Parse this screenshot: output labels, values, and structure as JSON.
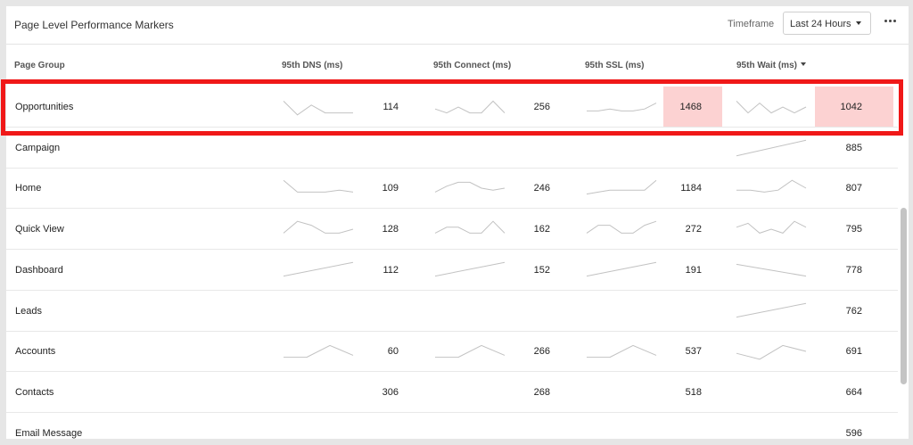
{
  "panel": {
    "title": "Page Level Performance Markers",
    "timeframe_label": "Timeframe",
    "timeframe_value": "Last 24 Hours",
    "more_icon": "more-horizontal-icon"
  },
  "columns": {
    "page_group": "Page Group",
    "dns": "95th DNS (ms)",
    "connect": "95th Connect (ms)",
    "ssl": "95th SSL (ms)",
    "wait": "95th Wait (ms)",
    "wait_sorted": "descending"
  },
  "colors": {
    "highlight_cell": "#fcd2d2",
    "annotation_box": "#f01818",
    "sparkline": "#c2c2c2"
  },
  "rows": [
    {
      "name": "Opportunities",
      "dns": "114",
      "connect": "256",
      "ssl": "1468",
      "wait": "1042",
      "ssl_highlight": true,
      "wait_highlight": true,
      "dns_trend": [
        0.2,
        0.9,
        0.4,
        0.8,
        0.8,
        0.8
      ],
      "connect_trend": [
        0.6,
        0.8,
        0.5,
        0.8,
        0.8,
        0.2,
        0.8
      ],
      "ssl_trend": [
        0.7,
        0.7,
        0.6,
        0.7,
        0.7,
        0.6,
        0.3
      ],
      "wait_trend": [
        0.2,
        0.8,
        0.3,
        0.8,
        0.5,
        0.8,
        0.5
      ]
    },
    {
      "name": "Campaign",
      "dns": "",
      "connect": "",
      "ssl": "",
      "wait": "885",
      "dns_trend": [],
      "connect_trend": [],
      "ssl_trend": [],
      "wait_trend": [
        0.9,
        0.1
      ]
    },
    {
      "name": "Home",
      "dns": "109",
      "connect": "246",
      "ssl": "1184",
      "wait": "807",
      "dns_trend": [
        0.1,
        0.7,
        0.7,
        0.7,
        0.6,
        0.7
      ],
      "connect_trend": [
        0.7,
        0.4,
        0.2,
        0.2,
        0.5,
        0.6,
        0.5
      ],
      "ssl_trend": [
        0.8,
        0.7,
        0.6,
        0.6,
        0.6,
        0.6,
        0.1
      ],
      "wait_trend": [
        0.6,
        0.6,
        0.7,
        0.6,
        0.1,
        0.5
      ]
    },
    {
      "name": "Quick View",
      "dns": "128",
      "connect": "162",
      "ssl": "272",
      "wait": "795",
      "dns_trend": [
        0.7,
        0.1,
        0.3,
        0.7,
        0.7,
        0.5
      ],
      "connect_trend": [
        0.7,
        0.4,
        0.4,
        0.7,
        0.7,
        0.1,
        0.7
      ],
      "ssl_trend": [
        0.7,
        0.3,
        0.3,
        0.7,
        0.7,
        0.3,
        0.1
      ],
      "wait_trend": [
        0.4,
        0.2,
        0.7,
        0.5,
        0.7,
        0.1,
        0.4
      ]
    },
    {
      "name": "Dashboard",
      "dns": "112",
      "connect": "152",
      "ssl": "191",
      "wait": "778",
      "dns_trend": [
        0.8,
        0.1
      ],
      "connect_trend": [
        0.8,
        0.1
      ],
      "ssl_trend": [
        0.8,
        0.1
      ],
      "wait_trend": [
        0.2,
        0.8
      ]
    },
    {
      "name": "Leads",
      "dns": "",
      "connect": "",
      "ssl": "",
      "wait": "762",
      "dns_trend": [],
      "connect_trend": [],
      "ssl_trend": [],
      "wait_trend": [
        0.8,
        0.1
      ]
    },
    {
      "name": "Accounts",
      "dns": "60",
      "connect": "266",
      "ssl": "537",
      "wait": "691",
      "dns_trend": [
        0.8,
        0.8,
        0.2,
        0.7
      ],
      "connect_trend": [
        0.8,
        0.8,
        0.2,
        0.7
      ],
      "ssl_trend": [
        0.8,
        0.8,
        0.2,
        0.7
      ],
      "wait_trend": [
        0.6,
        0.9,
        0.2,
        0.5
      ]
    },
    {
      "name": "Contacts",
      "dns": "306",
      "connect": "268",
      "ssl": "518",
      "wait": "664",
      "dns_trend": [],
      "connect_trend": [],
      "ssl_trend": [],
      "wait_trend": []
    },
    {
      "name": "Email Message",
      "dns": "",
      "connect": "",
      "ssl": "",
      "wait": "596",
      "dns_trend": [],
      "connect_trend": [],
      "ssl_trend": [],
      "wait_trend": []
    }
  ]
}
